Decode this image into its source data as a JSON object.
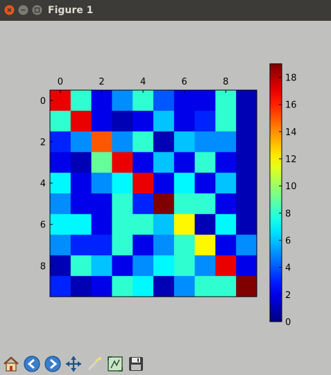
{
  "window": {
    "title": "Figure 1"
  },
  "chart_data": {
    "type": "heatmap",
    "colormap": "jet",
    "matrix": [
      [
        17,
        8,
        2,
        5,
        8,
        4,
        2,
        2,
        8,
        1
      ],
      [
        8,
        17,
        2,
        1,
        2,
        6,
        2,
        3,
        8,
        1
      ],
      [
        3,
        5,
        15,
        5,
        8,
        1,
        6,
        5,
        5,
        1
      ],
      [
        2,
        1,
        9,
        17,
        2,
        6,
        2,
        8,
        2,
        1
      ],
      [
        7,
        2,
        5,
        7,
        17,
        2,
        7,
        2,
        6,
        1
      ],
      [
        5,
        2,
        2,
        8,
        3,
        19,
        8,
        8,
        2,
        1
      ],
      [
        7,
        7,
        2,
        8,
        8,
        6,
        12,
        1,
        7,
        1
      ],
      [
        5,
        3,
        3,
        8,
        2,
        5,
        8,
        12,
        2,
        5
      ],
      [
        1,
        8,
        6,
        2,
        5,
        7,
        8,
        5,
        17,
        2
      ],
      [
        3,
        1,
        2,
        8,
        7,
        1,
        5,
        8,
        8,
        19
      ]
    ],
    "xticks": [
      "0",
      "2",
      "4",
      "6",
      "8"
    ],
    "yticks": [
      "0",
      "2",
      "4",
      "6",
      "8"
    ],
    "colorbar": {
      "min": 0,
      "max": 19,
      "ticks": [
        "0",
        "2",
        "4",
        "6",
        "8",
        "10",
        "12",
        "14",
        "16",
        "18"
      ]
    },
    "grid": false
  },
  "toolbar": {
    "icons": [
      "home-icon",
      "back-arrow-icon",
      "forward-arrow-icon",
      "pan-icon",
      "zoom-icon",
      "configure-subplots-icon",
      "save-icon"
    ]
  }
}
